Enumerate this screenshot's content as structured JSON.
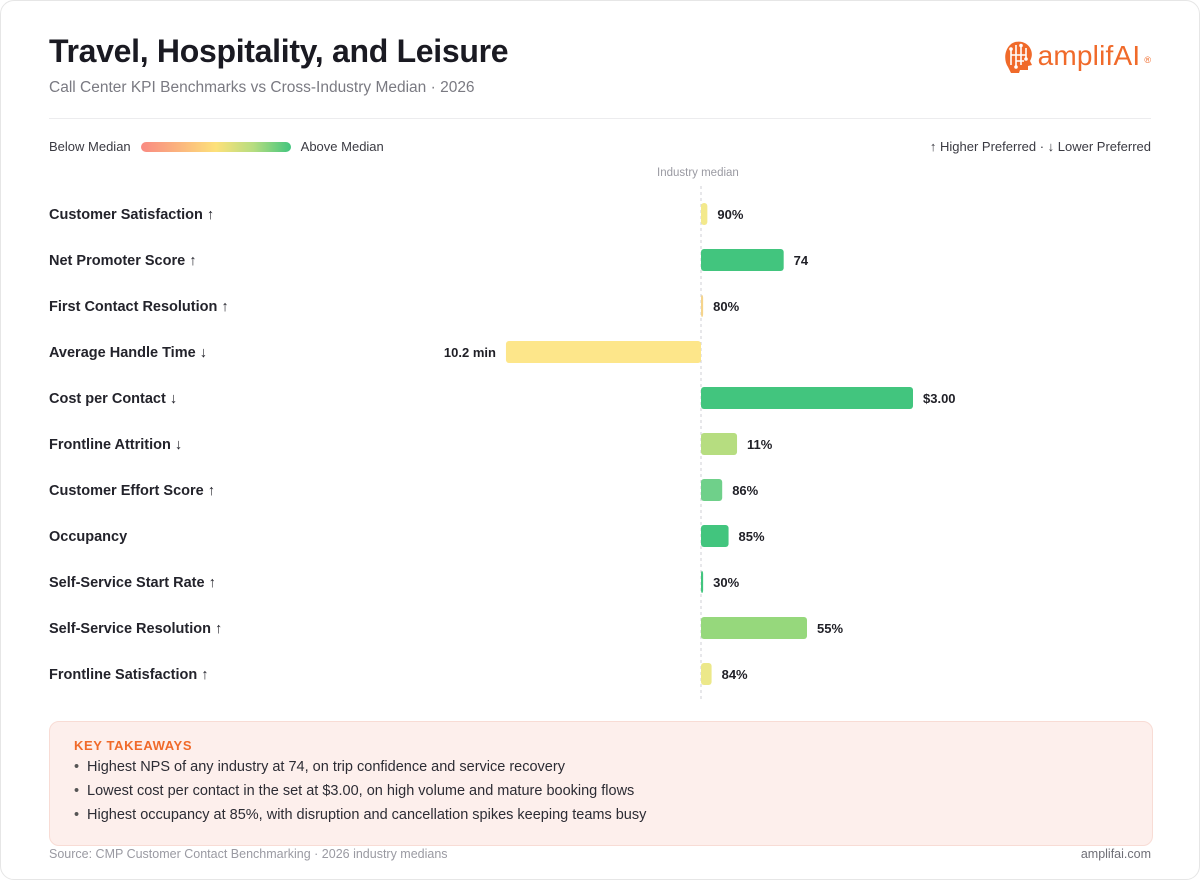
{
  "header": {
    "title": "Travel, Hospitality, and Leisure",
    "subtitle": "Call Center KPI Benchmarks vs Cross-Industry Median · 2026"
  },
  "logo": {
    "text": "amplifAI",
    "reg": "®",
    "icon": "brain-head-icon",
    "color": "#f06a2a"
  },
  "legend": {
    "below": "Below Median",
    "above": "Above Median",
    "preference": "↑ Higher Preferred · ↓ Lower Preferred",
    "gradient_colors": [
      "#f98a82",
      "#fbb47e",
      "#fde17a",
      "#b6dd80",
      "#42c57e"
    ]
  },
  "chart_data": {
    "type": "bar",
    "orientation": "horizontal-diverging",
    "median_label": "Industry median",
    "rows": [
      {
        "label": "Customer Satisfaction ↑",
        "value_label": "90%",
        "deviation": 0.03,
        "color": "#f3e98c"
      },
      {
        "label": "Net Promoter Score ↑",
        "value_label": "74",
        "deviation": 0.39,
        "color": "#42c57e"
      },
      {
        "label": "First Contact Resolution ↑",
        "value_label": "80%",
        "deviation": 0.01,
        "color": "#f5d48c"
      },
      {
        "label": "Average Handle Time ↓",
        "value_label": "10.2 min",
        "deviation": -0.92,
        "color": "#fde68a"
      },
      {
        "label": "Cost per Contact ↓",
        "value_label": "$3.00",
        "deviation": 1.0,
        "color": "#42c57e"
      },
      {
        "label": "Frontline Attrition ↓",
        "value_label": "11%",
        "deviation": 0.17,
        "color": "#b6dd80"
      },
      {
        "label": "Customer Effort Score ↑",
        "value_label": "86%",
        "deviation": 0.1,
        "color": "#6fd08a"
      },
      {
        "label": "Occupancy",
        "value_label": "85%",
        "deviation": 0.13,
        "color": "#42c57e"
      },
      {
        "label": "Self-Service Start Rate ↑",
        "value_label": "30%",
        "deviation": 0.01,
        "color": "#42c57e"
      },
      {
        "label": "Self-Service Resolution ↑",
        "value_label": "55%",
        "deviation": 0.5,
        "color": "#96d87c"
      },
      {
        "label": "Frontline Satisfaction ↑",
        "value_label": "84%",
        "deviation": 0.05,
        "color": "#ece88a"
      }
    ]
  },
  "takeaways": {
    "title": "KEY TAKEAWAYS",
    "items": [
      "Highest NPS of any industry at 74, on trip confidence and service recovery",
      "Lowest cost per contact in the set at $3.00, on high volume and mature booking flows",
      "Highest occupancy at 85%, with disruption and cancellation spikes keeping teams busy"
    ]
  },
  "footer": {
    "source": "Source: CMP Customer Contact Benchmarking · 2026 industry medians",
    "site": "amplifai.com"
  }
}
